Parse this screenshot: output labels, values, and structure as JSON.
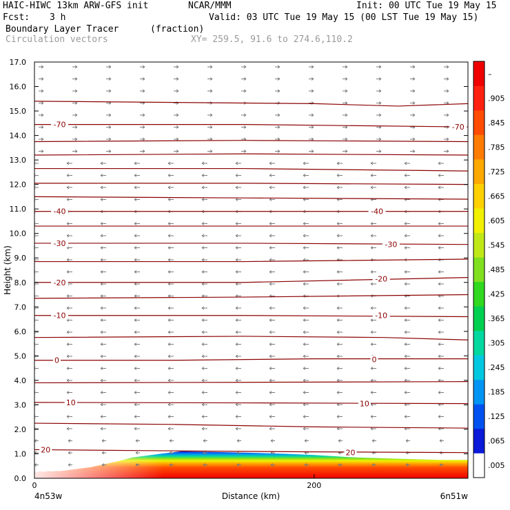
{
  "header": {
    "model": "HAIC-HIWC 13km ARW-GFS init",
    "org": "NCAR/MMM",
    "init": "Init: 00 UTC Tue 19 May 15",
    "fcst_label": "Fcst:",
    "fcst_value": "3 h",
    "valid": "Valid: 03 UTC Tue 19 May 15 (00 LST Tue 19 May 15)",
    "field": "Boundary Layer Tracer",
    "units": "(fraction)",
    "vectors": "Circulation vectors",
    "xy": "XY= 259.5, 91.6 to 274.6,110.2"
  },
  "colors": {
    "contour": "#8b0000",
    "vector": "#7a7a7a",
    "background": "#ffffff"
  },
  "chart_data": {
    "type": "heatmap",
    "xlabel": "Distance (km)",
    "ylabel": "Height (km)",
    "xlim": [
      0,
      310
    ],
    "ylim": [
      0.0,
      17.0
    ],
    "x_ticks": [
      {
        "value": 0,
        "label": "0"
      },
      {
        "value": 200,
        "label": "200"
      }
    ],
    "x_end_labels": {
      "left": "4n53w",
      "right": "6n51w"
    },
    "y_ticks": [
      "0.0",
      "1.0",
      "2.0",
      "3.0",
      "4.0",
      "5.0",
      "6.0",
      "7.0",
      "8.0",
      "9.0",
      "10.0",
      "11.0",
      "12.0",
      "13.0",
      "14.0",
      "15.0",
      "16.0",
      "17.0"
    ],
    "colorbar": {
      "labels": [
        ".005",
        ".065",
        ".125",
        ".185",
        ".245",
        ".305",
        ".365",
        ".425",
        ".485",
        ".545",
        ".605",
        ".665",
        ".725",
        ".785",
        ".845",
        ".905",
        "–"
      ],
      "colors": [
        "#ffffff",
        "#0a1ad8",
        "#0052f0",
        "#0094f4",
        "#00c8e0",
        "#00d8a0",
        "#00d050",
        "#30d820",
        "#80e020",
        "#c0e818",
        "#f0f000",
        "#ffd000",
        "#ffa800",
        "#ff7c00",
        "#ff4c00",
        "#ff2010",
        "#f00000"
      ]
    },
    "tracer_layer": {
      "note_free": true,
      "top_km": [
        [
          0,
          0.25
        ],
        [
          20,
          0.3
        ],
        [
          40,
          0.45
        ],
        [
          60,
          0.7
        ],
        [
          70,
          0.85
        ],
        [
          90,
          1.0
        ],
        [
          105,
          1.1
        ],
        [
          150,
          1.05
        ],
        [
          180,
          1.0
        ],
        [
          200,
          0.95
        ],
        [
          230,
          0.85
        ],
        [
          260,
          0.8
        ],
        [
          290,
          0.75
        ],
        [
          310,
          0.75
        ]
      ]
    },
    "contour_labels": [
      {
        "label": "-70",
        "x": 18,
        "y": 14.45
      },
      {
        "label": "-70",
        "x": 303,
        "y": 14.35
      },
      {
        "label": "-40",
        "x": 18,
        "y": 10.9
      },
      {
        "label": "-40",
        "x": 245,
        "y": 10.9
      },
      {
        "label": "-30",
        "x": 18,
        "y": 9.6
      },
      {
        "label": "-30",
        "x": 255,
        "y": 9.55
      },
      {
        "label": "-20",
        "x": 18,
        "y": 8.0
      },
      {
        "label": "-20",
        "x": 248,
        "y": 8.15
      },
      {
        "label": "-10",
        "x": 18,
        "y": 6.65
      },
      {
        "label": "-10",
        "x": 248,
        "y": 6.65
      },
      {
        "label": "0",
        "x": 16,
        "y": 4.82
      },
      {
        "label": "0",
        "x": 243,
        "y": 4.85
      },
      {
        "label": "10",
        "x": 26,
        "y": 3.1
      },
      {
        "label": "10",
        "x": 236,
        "y": 3.05
      },
      {
        "label": "20",
        "x": 8,
        "y": 1.17
      },
      {
        "label": "20",
        "x": 226,
        "y": 1.05
      }
    ],
    "contours": [
      [
        [
          0,
          15.4
        ],
        [
          100,
          15.35
        ],
        [
          200,
          15.3
        ],
        [
          260,
          15.2
        ],
        [
          310,
          15.3
        ]
      ],
      [
        [
          0,
          14.45
        ],
        [
          150,
          14.45
        ],
        [
          310,
          14.35
        ]
      ],
      [
        [
          0,
          13.75
        ],
        [
          150,
          13.8
        ],
        [
          310,
          13.75
        ]
      ],
      [
        [
          0,
          13.2
        ],
        [
          150,
          13.25
        ],
        [
          310,
          13.2
        ]
      ],
      [
        [
          0,
          12.65
        ],
        [
          150,
          12.65
        ],
        [
          310,
          12.55
        ]
      ],
      [
        [
          0,
          12.05
        ],
        [
          150,
          12.05
        ],
        [
          310,
          12.0
        ]
      ],
      [
        [
          0,
          11.5
        ],
        [
          150,
          11.45
        ],
        [
          310,
          11.4
        ]
      ],
      [
        [
          0,
          10.9
        ],
        [
          150,
          10.9
        ],
        [
          310,
          10.9
        ]
      ],
      [
        [
          0,
          10.3
        ],
        [
          150,
          10.3
        ],
        [
          310,
          10.3
        ]
      ],
      [
        [
          0,
          9.6
        ],
        [
          150,
          9.6
        ],
        [
          310,
          9.55
        ]
      ],
      [
        [
          0,
          8.85
        ],
        [
          150,
          8.85
        ],
        [
          310,
          8.95
        ]
      ],
      [
        [
          0,
          8.0
        ],
        [
          150,
          8.0
        ],
        [
          310,
          8.2
        ]
      ],
      [
        [
          0,
          7.35
        ],
        [
          150,
          7.4
        ],
        [
          310,
          7.5
        ]
      ],
      [
        [
          0,
          6.65
        ],
        [
          150,
          6.65
        ],
        [
          310,
          6.6
        ]
      ],
      [
        [
          0,
          5.75
        ],
        [
          150,
          5.8
        ],
        [
          250,
          5.75
        ],
        [
          310,
          5.65
        ]
      ],
      [
        [
          0,
          4.82
        ],
        [
          100,
          4.82
        ],
        [
          200,
          4.88
        ],
        [
          310,
          4.88
        ]
      ],
      [
        [
          0,
          3.9
        ],
        [
          150,
          3.92
        ],
        [
          310,
          3.95
        ]
      ],
      [
        [
          0,
          3.1
        ],
        [
          150,
          3.08
        ],
        [
          310,
          3.05
        ]
      ],
      [
        [
          0,
          2.25
        ],
        [
          100,
          2.2
        ],
        [
          200,
          2.1
        ],
        [
          310,
          2.05
        ]
      ],
      [
        [
          0,
          1.17
        ],
        [
          100,
          1.12
        ],
        [
          200,
          1.08
        ],
        [
          310,
          1.05
        ]
      ]
    ]
  }
}
